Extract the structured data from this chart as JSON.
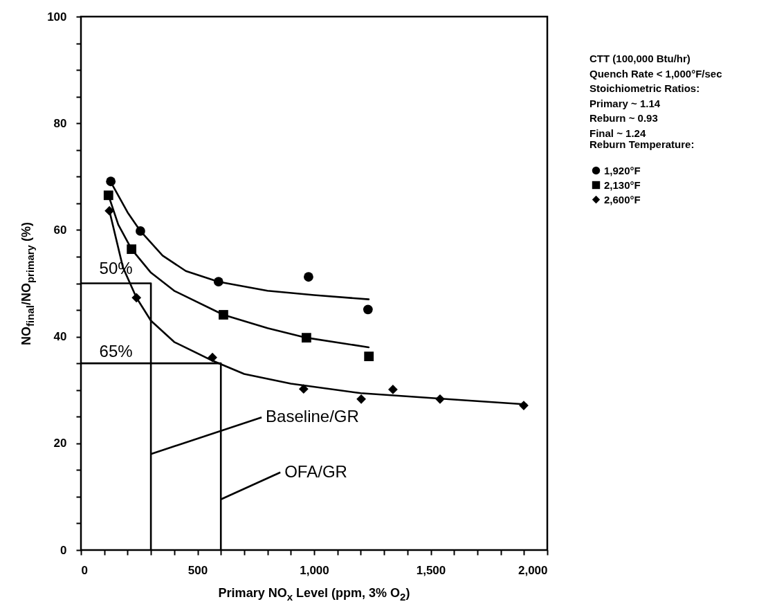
{
  "chart_data": {
    "type": "scatter",
    "xlabel": "Primary NO$_{x}$ Level (ppm, 3% O$_{2}$)",
    "ylabel": "NO$_{final}$/NO$_{primary}$ (%)",
    "legend_title": "Reburn Temperature:",
    "legend": "right",
    "xlim": [
      0,
      2000
    ],
    "ylim": [
      0,
      100
    ],
    "xticks": [
      {
        "value": 0,
        "label": "0"
      },
      {
        "value": 100,
        "label": null
      },
      {
        "value": 200,
        "label": null
      },
      {
        "value": 300,
        "label": null
      },
      {
        "value": 400,
        "label": null
      },
      {
        "value": 500,
        "label": "500"
      },
      {
        "value": 600,
        "label": null
      },
      {
        "value": 700,
        "label": null
      },
      {
        "value": 800,
        "label": null
      },
      {
        "value": 900,
        "label": null
      },
      {
        "value": 1000,
        "label": "1,000"
      },
      {
        "value": 1100,
        "label": null
      },
      {
        "value": 1200,
        "label": null
      },
      {
        "value": 1300,
        "label": null
      },
      {
        "value": 1400,
        "label": null
      },
      {
        "value": 1500,
        "label": "1,500"
      },
      {
        "value": 1600,
        "label": null
      },
      {
        "value": 1700,
        "label": null
      },
      {
        "value": 1800,
        "label": null
      },
      {
        "value": 1900,
        "label": null
      },
      {
        "value": 2000,
        "label": "2,000"
      }
    ],
    "yticks": [
      0,
      {
        "value": 5,
        "label": null
      },
      {
        "value": 10,
        "label": null
      },
      {
        "value": 15,
        "label": null
      },
      20,
      {
        "value": 25,
        "label": null
      },
      {
        "value": 30,
        "label": null
      },
      {
        "value": 35,
        "label": null
      },
      40,
      {
        "value": 45,
        "label": null
      },
      {
        "value": 50,
        "label": null
      },
      {
        "value": 55,
        "label": null
      },
      60,
      {
        "value": 65,
        "label": null
      },
      {
        "value": 70,
        "label": null
      },
      {
        "value": 75,
        "label": null
      },
      80,
      {
        "value": 85,
        "label": null
      },
      {
        "value": 90,
        "label": null
      },
      {
        "value": 95,
        "label": null
      },
      100
    ],
    "series": [
      {
        "name": "1,920°F",
        "marker": "circle",
        "color": "#000000",
        "x": [
          128,
          255,
          590,
          976,
          1231
        ],
        "values": [
          69.1,
          59.8,
          50.3,
          51.2,
          45.1
        ]
      },
      {
        "name": "2,130°F",
        "marker": "square",
        "color": "#000000",
        "x": [
          118,
          217,
          611,
          967,
          1235
        ],
        "values": [
          66.5,
          56.4,
          44.1,
          39.8,
          36.3
        ]
      },
      {
        "name": "2,600°F",
        "marker": "diamond",
        "color": "#000000",
        "x": [
          122,
          238,
          564,
          955,
          1202,
          1338,
          1540,
          1899
        ],
        "values": [
          63.6,
          47.3,
          36.1,
          30.2,
          28.3,
          30.1,
          28.3,
          27.1
        ]
      },
      {
        "type": "line",
        "color": "#000000",
        "x": [
          128,
          200,
          255,
          350,
          450,
          590,
          800,
          1000,
          1234
        ],
        "values": [
          69,
          63.3,
          59.8,
          55.2,
          52.3,
          50.3,
          48.6,
          47.8,
          47
        ]
      },
      {
        "type": "line",
        "color": "#000000",
        "x": [
          118,
          160,
          217,
          300,
          400,
          611,
          800,
          967,
          1234
        ],
        "values": [
          66.5,
          61,
          56.4,
          52,
          48.6,
          44.1,
          41.6,
          39.8,
          38
        ]
      },
      {
        "type": "line",
        "color": "#000000",
        "x": [
          122,
          180,
          238,
          300,
          400,
          564,
          700,
          900,
          1200,
          1600,
          1910
        ],
        "values": [
          63.6,
          53,
          47.3,
          43,
          39,
          35.5,
          33,
          31.2,
          29.4,
          28.2,
          27.3
        ]
      },
      {
        "type": "line",
        "color": "#000000",
        "x": [
          0,
          300,
          300
        ],
        "values": [
          50,
          50,
          0
        ]
      },
      {
        "type": "line",
        "color": "#000000",
        "x": [
          0,
          600,
          600
        ],
        "values": [
          35,
          35,
          0
        ]
      }
    ],
    "annotations": [
      {
        "text": "50%",
        "x": 150,
        "y": 50
      },
      {
        "text": "65%",
        "x": 150,
        "y": 35
      },
      {
        "text": "Baseline/GR",
        "x": 300,
        "y": 18
      },
      {
        "text": "OFA/GR",
        "x": 600,
        "y": 9.5
      },
      "CTT (100,000 Btu/hr)",
      "Quench Rate < 1,000°F/sec",
      "Stoichiometric Ratios:",
      "  Primary ~ 1.14",
      "  Reburn ~ 0.93",
      "  Final    ~ 1.24"
    ]
  }
}
